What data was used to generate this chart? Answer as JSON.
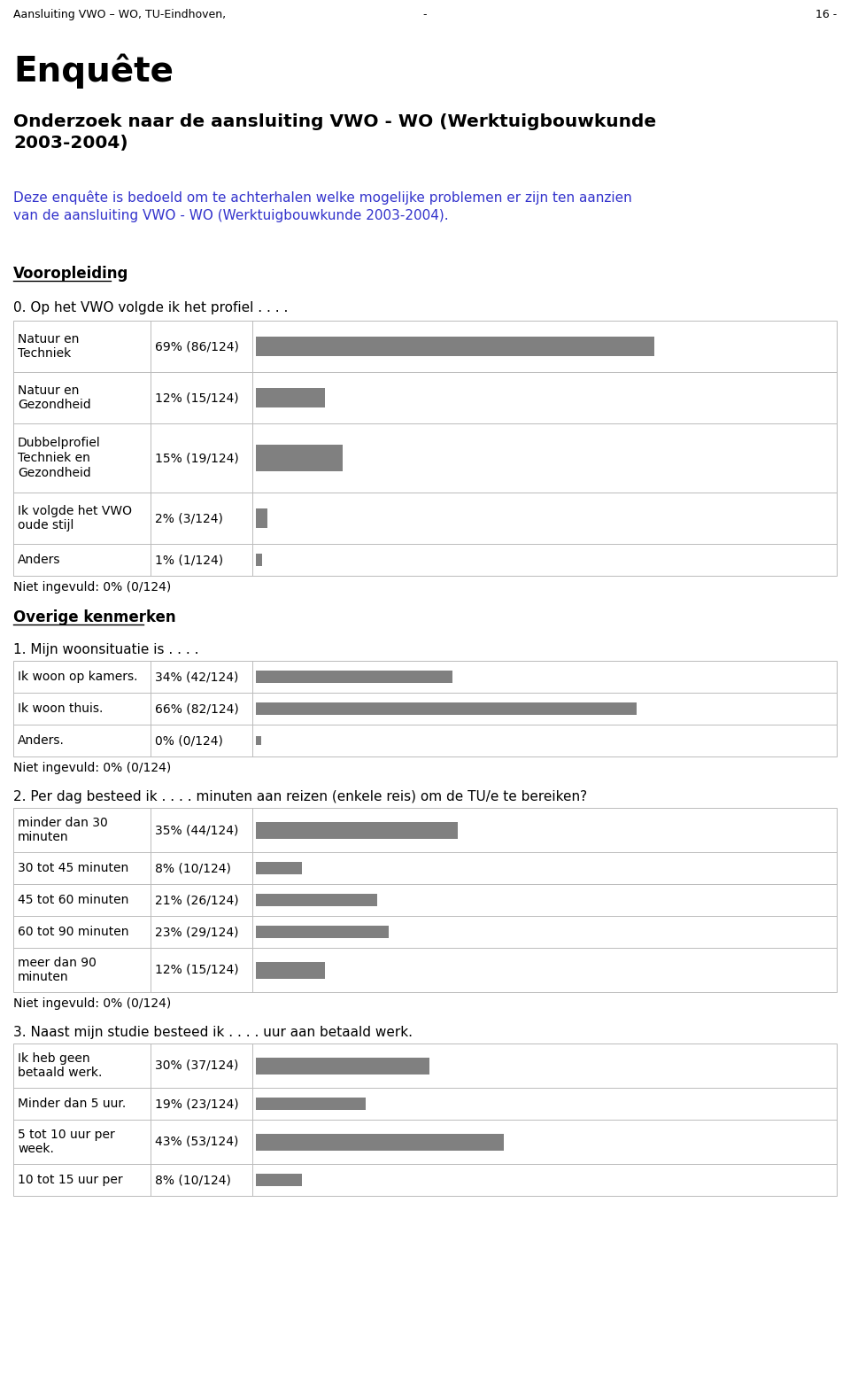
{
  "page_header_left": "Aansluiting VWO – WO, TU-Eindhoven,",
  "page_header_mid": "-",
  "page_header_right": "16 -",
  "title_enquete": "Enquête",
  "subtitle": "Onderzoek naar de aansluiting VWO - WO (Werktuigbouwkunde\n2003-2004)",
  "intro_text": "Deze enquête is bedoeld om te achterhalen welke mogelijke problemen er zijn ten aanzien\nvan de aansluiting VWO - WO (Werktuigbouwkunde 2003-2004).",
  "section1_header": "Vooropleiding",
  "question0": "0. Op het VWO volgde ik het profiel . . . .",
  "table0": {
    "rows": [
      {
        "label": "Natuur en\nTechniek",
        "value_text": "69% (86/124)",
        "pct": 69
      },
      {
        "label": "Natuur en\nGezondheid",
        "value_text": "12% (15/124)",
        "pct": 12
      },
      {
        "label": "Dubbelprofiel\nTechniek en\nGezondheid",
        "value_text": "15% (19/124)",
        "pct": 15
      },
      {
        "label": "Ik volgde het VWO\noude stijl",
        "value_text": "2% (3/124)",
        "pct": 2
      },
      {
        "label": "Anders",
        "value_text": "1% (1/124)",
        "pct": 1
      }
    ],
    "niet_ingevuld": "Niet ingevuld: 0% (0/124)"
  },
  "section2_header": "Overige kenmerken",
  "question1": "1. Mijn woonsituatie is . . . .",
  "table1": {
    "rows": [
      {
        "label": "Ik woon op kamers.",
        "value_text": "34% (42/124)",
        "pct": 34
      },
      {
        "label": "Ik woon thuis.",
        "value_text": "66% (82/124)",
        "pct": 66
      },
      {
        "label": "Anders.",
        "value_text": "0% (0/124)",
        "pct": 0
      }
    ],
    "niet_ingevuld": "Niet ingevuld: 0% (0/124)"
  },
  "question2": "2. Per dag besteed ik . . . . minuten aan reizen (enkele reis) om de TU/e te bereiken?",
  "table2": {
    "rows": [
      {
        "label": "minder dan 30\nminuten",
        "value_text": "35% (44/124)",
        "pct": 35
      },
      {
        "label": "30 tot 45 minuten",
        "value_text": "8% (10/124)",
        "pct": 8
      },
      {
        "label": "45 tot 60 minuten",
        "value_text": "21% (26/124)",
        "pct": 21
      },
      {
        "label": "60 tot 90 minuten",
        "value_text": "23% (29/124)",
        "pct": 23
      },
      {
        "label": "meer dan 90\nminuten",
        "value_text": "12% (15/124)",
        "pct": 12
      }
    ],
    "niet_ingevuld": "Niet ingevuld: 0% (0/124)"
  },
  "question3": "3. Naast mijn studie besteed ik . . . . uur aan betaald werk.",
  "table3": {
    "rows": [
      {
        "label": "Ik heb geen\nbetaald werk.",
        "value_text": "30% (37/124)",
        "pct": 30
      },
      {
        "label": "Minder dan 5 uur.",
        "value_text": "19% (23/124)",
        "pct": 19
      },
      {
        "label": "5 tot 10 uur per\nweek.",
        "value_text": "43% (53/124)",
        "pct": 43
      },
      {
        "label": "10 tot 15 uur per",
        "value_text": "8% (10/124)",
        "pct": 8
      }
    ],
    "niet_ingevuld": ""
  },
  "bar_color": "#808080",
  "bg_color": "#ffffff",
  "blue_color": "#3333cc",
  "border_color": "#bbbbbb"
}
